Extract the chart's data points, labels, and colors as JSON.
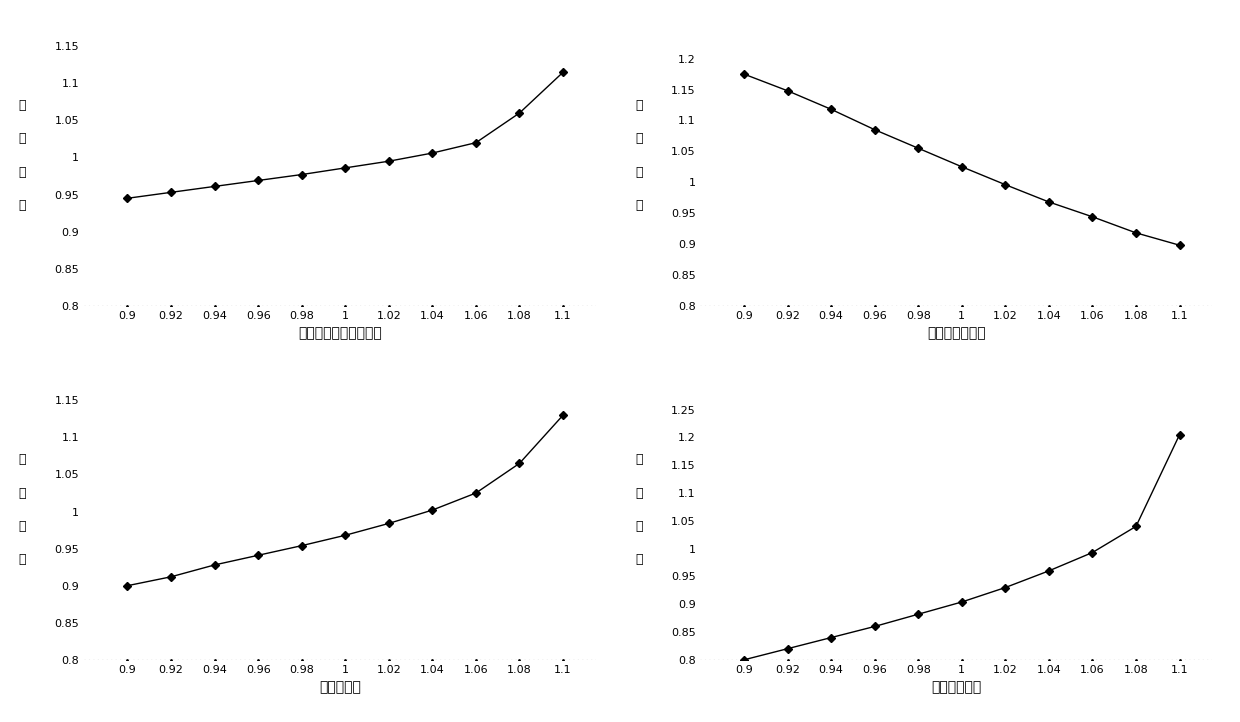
{
  "x_values": [
    0.9,
    0.92,
    0.94,
    0.96,
    0.98,
    1.0,
    1.02,
    1.04,
    1.06,
    1.08,
    1.1
  ],
  "subplot1": {
    "y_values": [
      0.945,
      0.953,
      0.961,
      0.969,
      0.977,
      0.986,
      0.995,
      1.006,
      1.02,
      1.06,
      1.115
    ],
    "xlabel": "蔕气发生器二次侧压力",
    "ylim": [
      0.8,
      1.175
    ],
    "yticks": [
      0.8,
      0.85,
      0.9,
      0.95,
      1.0,
      1.05,
      1.1,
      1.15
    ]
  },
  "subplot2": {
    "y_values": [
      1.175,
      1.148,
      1.118,
      1.085,
      1.055,
      1.025,
      0.996,
      0.968,
      0.944,
      0.918,
      0.898
    ],
    "xlabel": "冷凝器壳侧压力",
    "ylim": [
      0.8,
      1.25
    ],
    "yticks": [
      0.8,
      0.85,
      0.9,
      0.95,
      1.0,
      1.05,
      1.1,
      1.15,
      1.2
    ]
  },
  "subplot3": {
    "y_values": [
      0.9,
      0.912,
      0.928,
      0.941,
      0.954,
      0.968,
      0.984,
      1.002,
      1.025,
      1.065,
      1.13
    ],
    "xlabel": "传热管外径",
    "ylim": [
      0.8,
      1.175
    ],
    "yticks": [
      0.8,
      0.85,
      0.9,
      0.95,
      1.0,
      1.05,
      1.1,
      1.15
    ]
  },
  "subplot4": {
    "y_values": [
      0.8,
      0.82,
      0.84,
      0.86,
      0.882,
      0.904,
      0.93,
      0.96,
      0.993,
      1.04,
      1.205
    ],
    "xlabel": "传热管节径比",
    "ylim": [
      0.8,
      1.3
    ],
    "yticks": [
      0.8,
      0.85,
      0.9,
      0.95,
      1.0,
      1.05,
      1.1,
      1.15,
      1.2,
      1.25
    ]
  },
  "x_ticks": [
    0.9,
    0.92,
    0.94,
    0.96,
    0.98,
    1.0,
    1.02,
    1.04,
    1.06,
    1.08,
    1.1
  ],
  "ylabel_chars": [
    "整",
    "体",
    "尺",
    "寸"
  ],
  "line_color": "#000000",
  "marker": "D",
  "marker_size": 4,
  "line_width": 1.0,
  "background_color": "#ffffff"
}
